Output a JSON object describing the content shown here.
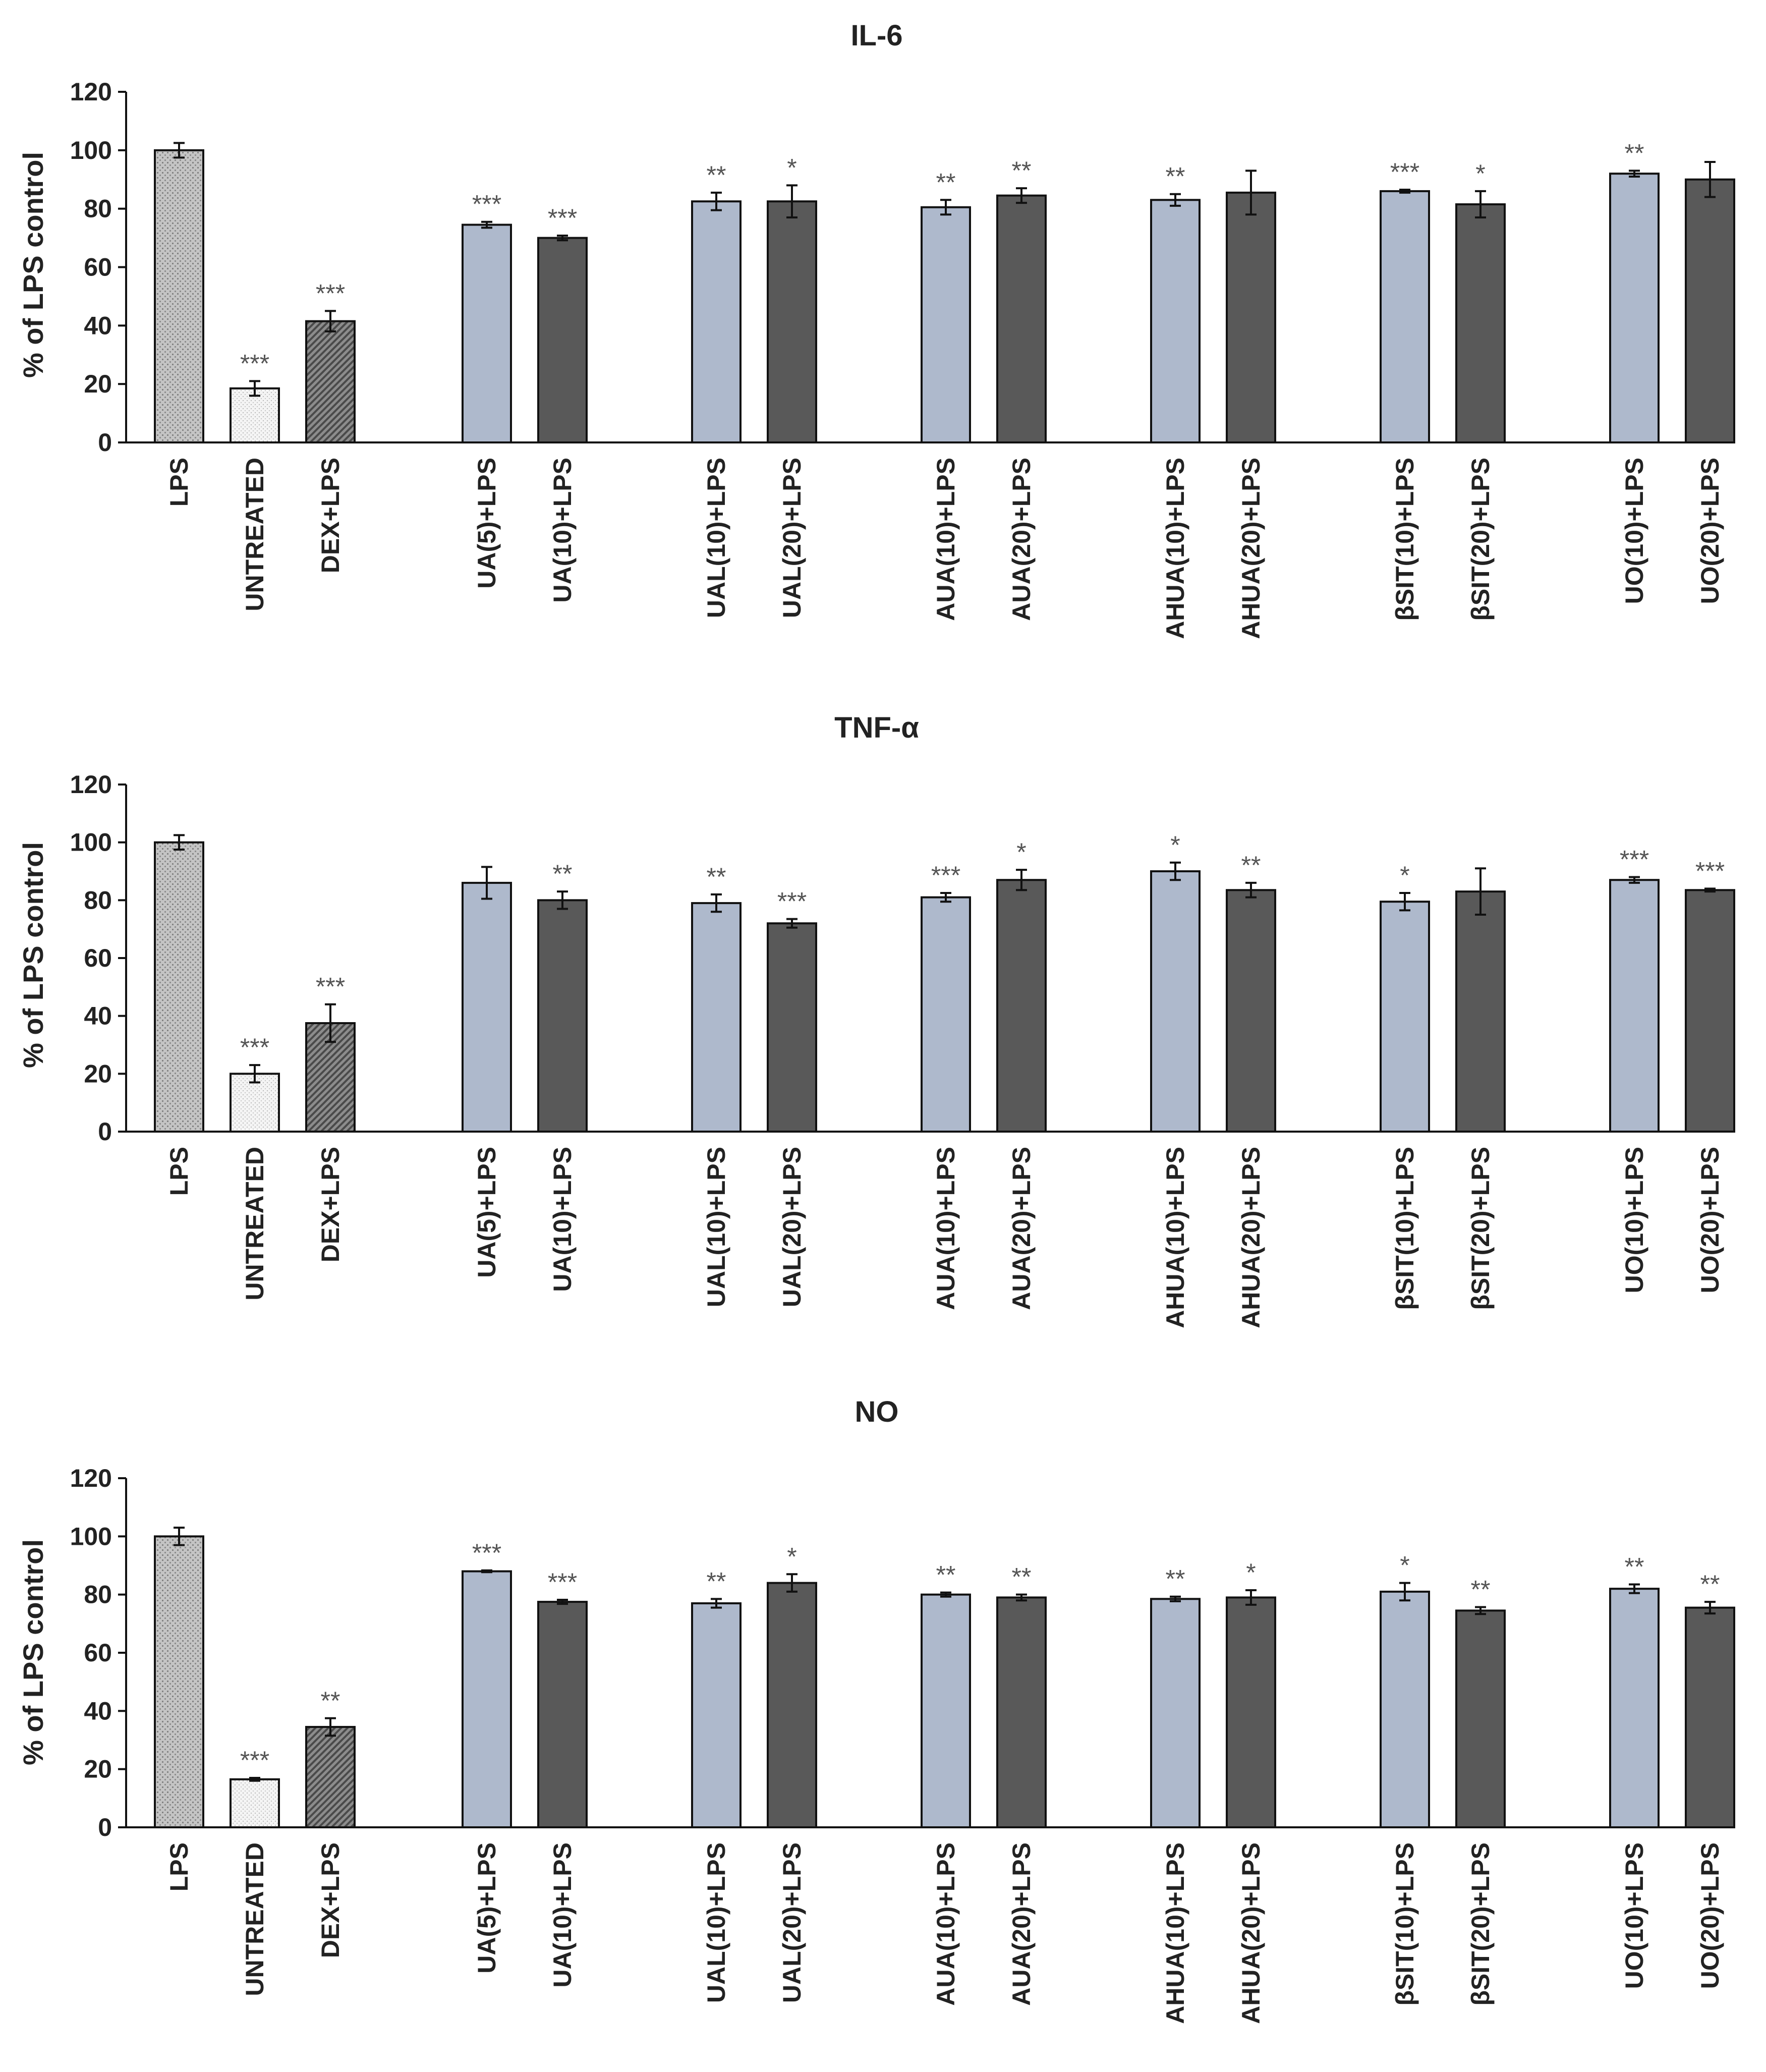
{
  "chart_data": [
    {
      "type": "bar",
      "title": "IL-6",
      "ylabel": "% of LPS control",
      "xlabel": "",
      "ylim": [
        0,
        120
      ],
      "yticks": [
        0,
        20,
        40,
        60,
        80,
        100,
        120
      ],
      "categories": [
        "LPS",
        "UNTREATED",
        "DEX+LPS",
        "UA(5)+LPS",
        "UA(10)+LPS",
        "UAL(10)+LPS",
        "UAL(20)+LPS",
        "AUA(10)+LPS",
        "AUA(20)+LPS",
        "AHUA(10)+LPS",
        "AHUA(20)+LPS",
        "βSIT(10)+LPS",
        "βSIT(20)+LPS",
        "UO(10)+LPS",
        "UO(20)+LPS"
      ],
      "values": [
        100,
        18.5,
        41.5,
        74.5,
        70,
        82.5,
        82.5,
        80.5,
        84.5,
        83,
        85.5,
        86,
        81.5,
        92,
        90
      ],
      "errors": [
        2.5,
        2.5,
        3.5,
        1,
        0.8,
        3,
        5.5,
        2.5,
        2.5,
        2,
        7.5,
        0.5,
        4.5,
        1,
        6
      ],
      "significance": [
        "",
        "***",
        "***",
        "***",
        "***",
        "**",
        "*",
        "**",
        "**",
        "**",
        "",
        "***",
        "*",
        "**",
        ""
      ]
    },
    {
      "type": "bar",
      "title": "TNF-α",
      "ylabel": "% of LPS control",
      "xlabel": "",
      "ylim": [
        0,
        120
      ],
      "yticks": [
        0,
        20,
        40,
        60,
        80,
        100,
        120
      ],
      "categories": [
        "LPS",
        "UNTREATED",
        "DEX+LPS",
        "UA(5)+LPS",
        "UA(10)+LPS",
        "UAL(10)+LPS",
        "UAL(20)+LPS",
        "AUA(10)+LPS",
        "AUA(20)+LPS",
        "AHUA(10)+LPS",
        "AHUA(20)+LPS",
        "βSIT(10)+LPS",
        "βSIT(20)+LPS",
        "UO(10)+LPS",
        "UO(20)+LPS"
      ],
      "values": [
        100,
        20,
        37.5,
        86,
        80,
        79,
        72,
        81,
        87,
        90,
        83.5,
        79.5,
        83,
        87,
        83.5
      ],
      "errors": [
        2.5,
        3,
        6.5,
        5.5,
        3,
        3,
        1.5,
        1.5,
        3.5,
        3,
        2.5,
        3,
        8,
        1,
        0.5
      ],
      "significance": [
        "",
        "***",
        "***",
        "",
        "**",
        "**",
        "***",
        "***",
        "*",
        "*",
        "**",
        "*",
        "",
        "***",
        "***"
      ]
    },
    {
      "type": "bar",
      "title": "NO",
      "ylabel": "% of LPS control",
      "xlabel": "",
      "ylim": [
        0,
        120
      ],
      "yticks": [
        0,
        20,
        40,
        60,
        80,
        100,
        120
      ],
      "categories": [
        "LPS",
        "UNTREATED",
        "DEX+LPS",
        "UA(5)+LPS",
        "UA(10)+LPS",
        "UAL(10)+LPS",
        "UAL(20)+LPS",
        "AUA(10)+LPS",
        "AUA(20)+LPS",
        "AHUA(10)+LPS",
        "AHUA(20)+LPS",
        "βSIT(10)+LPS",
        "βSIT(20)+LPS",
        "UO(10)+LPS",
        "UO(20)+LPS"
      ],
      "values": [
        100,
        16.5,
        34.5,
        88,
        77.5,
        77,
        84,
        80,
        79,
        78.5,
        79,
        81,
        74.5,
        82,
        75.5
      ],
      "errors": [
        3,
        0.5,
        3,
        0.3,
        0.7,
        1.5,
        3,
        0.7,
        1,
        0.8,
        2.5,
        3,
        1.2,
        1.5,
        2
      ],
      "significance": [
        "",
        "***",
        "**",
        "***",
        "***",
        "**",
        "*",
        "**",
        "**",
        "**",
        "*",
        "*",
        "**",
        "**",
        "**"
      ]
    }
  ],
  "style": {
    "fill_control": "#bdbdbd",
    "fill_untreated": "#f2f2f2",
    "fill_dex": "#7a7a7a",
    "fill_light": "#aeb9cc",
    "fill_dark": "#595959",
    "stroke": "#111111"
  }
}
